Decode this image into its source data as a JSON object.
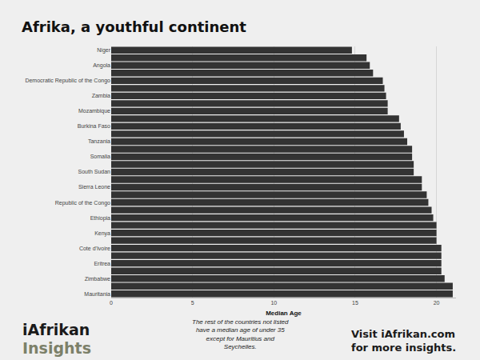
{
  "chart_data": {
    "type": "bar",
    "orientation": "horizontal",
    "title": "Afrika, a youthful continent",
    "x_label": "Median Age",
    "categories": [
      "Niger",
      null,
      "Angola",
      null,
      "Democratic Republic of the Congo",
      null,
      "Zambia",
      null,
      "Mozambique",
      null,
      "Burkina Faso",
      null,
      "Tanzania",
      null,
      "Somalia",
      null,
      "South Sudan",
      null,
      "Sierra Leone",
      null,
      "Republic of the Congo",
      null,
      "Ethiopia",
      null,
      "Kenya",
      null,
      "Cote d'Ivoire",
      null,
      "Eritrea",
      null,
      "Zimbabwe",
      null,
      "Mauritania"
    ],
    "values": [
      14.8,
      15.7,
      15.9,
      16.1,
      16.7,
      16.8,
      16.9,
      17.0,
      17.0,
      17.7,
      17.8,
      18.0,
      18.2,
      18.5,
      18.5,
      18.6,
      18.6,
      19.1,
      19.1,
      19.4,
      19.5,
      19.7,
      19.8,
      20.0,
      20.0,
      20.0,
      20.3,
      20.3,
      20.3,
      20.3,
      20.5,
      21.0,
      21.0
    ],
    "color": "#333333",
    "xlim": [
      0,
      21.2
    ],
    "xticks": [
      0,
      5,
      10,
      15,
      20
    ],
    "grid": true,
    "data_labels": false,
    "annotations": [
      "iAfrikan",
      "Insights",
      "The rest of the countries not listed\nhave a median age of under 35\nexcept for Mauritius and\nSeychelles.",
      "Visit iAfrikan.com\nfor more insights."
    ]
  }
}
